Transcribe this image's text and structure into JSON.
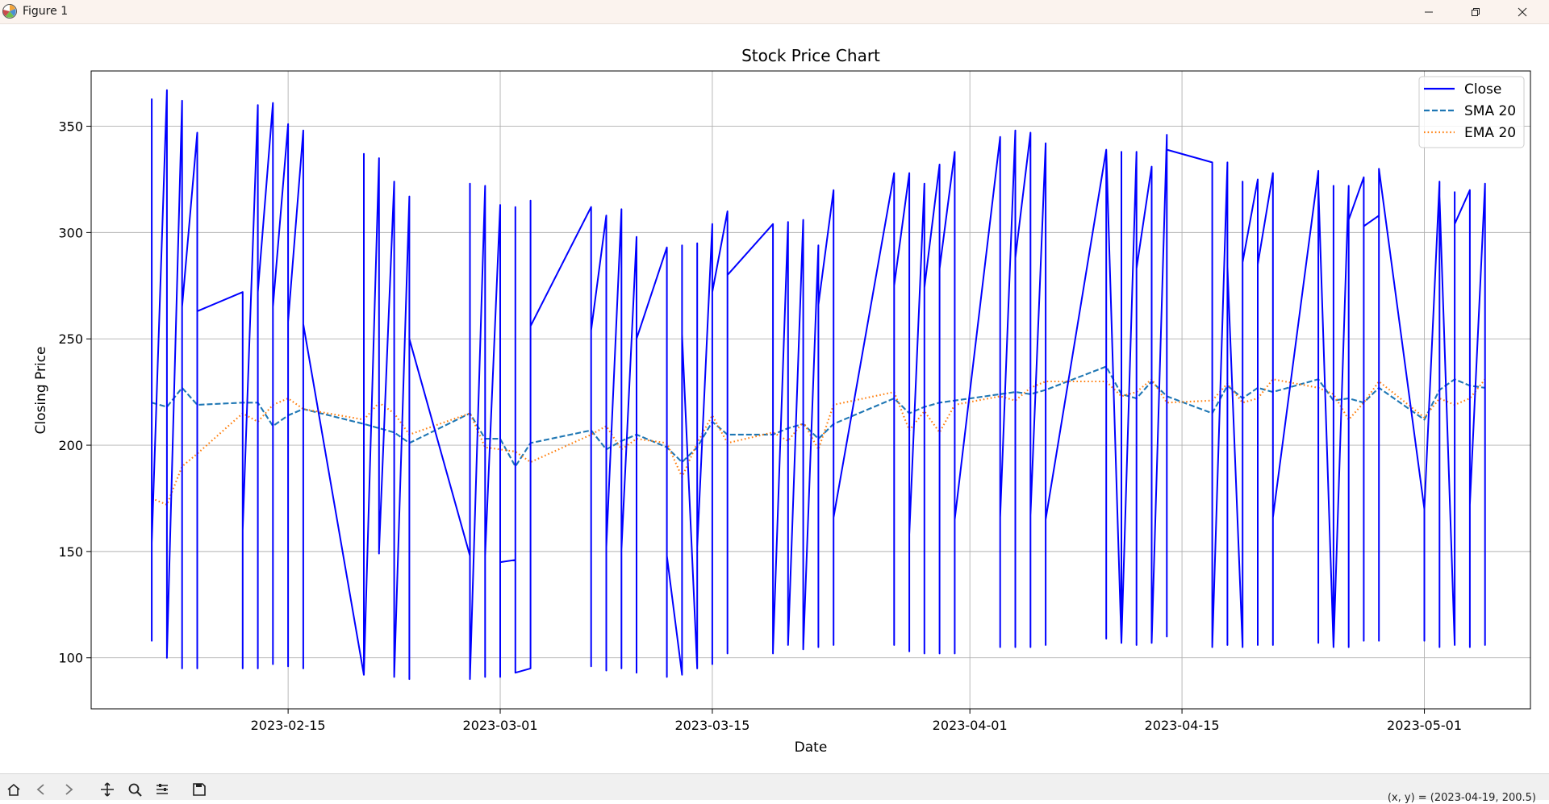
{
  "window": {
    "title": "Figure 1",
    "app_icon": "matplotlib-icon",
    "controls": [
      "minimize-icon",
      "maximize-icon",
      "close-icon"
    ]
  },
  "toolbar": {
    "tools": [
      "home-icon",
      "back-icon",
      "forward-icon",
      "pan-icon",
      "zoom-icon",
      "configure-subplots-icon",
      "save-icon"
    ],
    "coordinates": "(x, y) = (2023-04-19, 200.5)"
  },
  "chart_data": {
    "type": "line",
    "title": "Stock Price Chart",
    "xlabel": "Date",
    "ylabel": "Closing Price",
    "x_ticks": [
      "2023-02-15",
      "2023-03-01",
      "2023-03-15",
      "2023-04-01",
      "2023-04-15",
      "2023-05-01"
    ],
    "y_ticks": [
      100,
      150,
      200,
      250,
      300,
      350
    ],
    "xlim": [
      "2023-02-02",
      "2023-05-08"
    ],
    "ylim": [
      76,
      376
    ],
    "grid": true,
    "legend": "top-right",
    "x": [
      "2023-02-06",
      "2023-02-07",
      "2023-02-08",
      "2023-02-09",
      "2023-02-12",
      "2023-02-13",
      "2023-02-14",
      "2023-02-15",
      "2023-02-16",
      "2023-02-20",
      "2023-02-21",
      "2023-02-22",
      "2023-02-23",
      "2023-02-27",
      "2023-02-28",
      "2023-03-01",
      "2023-03-02",
      "2023-03-03",
      "2023-03-07",
      "2023-03-08",
      "2023-03-09",
      "2023-03-10",
      "2023-03-12",
      "2023-03-13",
      "2023-03-14",
      "2023-03-15",
      "2023-03-16",
      "2023-03-19",
      "2023-03-20",
      "2023-03-21",
      "2023-03-22",
      "2023-03-23",
      "2023-03-27",
      "2023-03-28",
      "2023-03-29",
      "2023-03-30",
      "2023-03-31",
      "2023-04-03",
      "2023-04-04",
      "2023-04-05",
      "2023-04-06",
      "2023-04-10",
      "2023-04-11",
      "2023-04-12",
      "2023-04-13",
      "2023-04-14",
      "2023-04-17",
      "2023-04-18",
      "2023-04-19",
      "2023-04-20",
      "2023-04-21",
      "2023-04-24",
      "2023-04-25",
      "2023-04-26",
      "2023-04-27",
      "2023-04-28",
      "2023-05-01",
      "2023-05-02",
      "2023-05-03",
      "2023-05-04",
      "2023-05-05"
    ],
    "series": [
      {
        "name": "Close",
        "color": "#0000ff",
        "style": "solid",
        "values": [
          [
            363,
            108,
            154
          ],
          [
            367,
            100,
            101
          ],
          [
            362,
            95,
            265
          ],
          [
            347,
            95,
            263
          ],
          [
            272,
            95,
            160
          ],
          [
            360,
            95,
            272
          ],
          [
            361,
            97,
            265
          ],
          [
            351,
            96,
            258
          ],
          [
            348,
            95,
            257
          ],
          [
            92,
            337,
            92
          ],
          [
            335,
            149,
            150
          ],
          [
            324,
            92,
            91
          ],
          [
            317,
            90,
            250
          ],
          [
            148,
            323,
            90
          ],
          [
            322,
            91,
            148
          ],
          [
            313,
            91,
            145
          ],
          [
            146,
            312,
            93
          ],
          [
            95,
            315,
            256
          ],
          [
            312,
            96,
            254
          ],
          [
            308,
            94,
            152
          ],
          [
            311,
            95,
            151
          ],
          [
            298,
            93,
            250
          ],
          [
            293,
            91,
            148
          ],
          [
            92,
            294,
            252
          ],
          [
            95,
            295,
            152
          ],
          [
            304,
            97,
            272
          ],
          [
            310,
            102,
            280
          ],
          [
            304,
            102,
            103
          ],
          [
            305,
            273,
            106
          ],
          [
            306,
            265,
            104
          ],
          [
            294,
            105,
            266
          ],
          [
            320,
            106,
            166
          ],
          [
            328,
            106,
            275
          ],
          [
            328,
            103,
            158
          ],
          [
            323,
            102,
            274
          ],
          [
            332,
            102,
            283
          ],
          [
            338,
            102,
            165
          ],
          [
            345,
            105,
            166
          ],
          [
            348,
            105,
            288
          ],
          [
            347,
            105,
            167
          ],
          [
            342,
            106,
            165
          ],
          [
            339,
            109,
            339
          ],
          [
            107,
            338,
            107
          ],
          [
            338,
            106,
            283
          ],
          [
            331,
            289,
            107
          ],
          [
            346,
            110,
            339
          ],
          [
            333,
            107,
            105
          ],
          [
            333,
            106,
            284
          ],
          [
            105,
            324,
            286
          ],
          [
            325,
            106,
            285
          ],
          [
            328,
            106,
            166
          ],
          [
            329,
            107,
            322
          ],
          [
            105,
            322,
            105
          ],
          [
            322,
            105,
            306
          ],
          [
            326,
            108,
            303
          ],
          [
            308,
            108,
            330
          ],
          [
            170,
            108,
            170
          ],
          [
            324,
            105,
            317
          ],
          [
            106,
            319,
            304
          ],
          [
            320,
            105,
            172
          ],
          [
            323,
            106,
            107
          ]
        ]
      },
      {
        "name": "SMA 20",
        "color": "#1f77b4",
        "style": "dashed",
        "values": [
          220,
          218,
          227,
          219,
          220,
          220,
          209,
          214,
          217,
          210,
          208,
          206,
          201,
          215,
          203,
          203,
          190,
          201,
          207,
          198,
          202,
          205,
          199,
          192,
          199,
          211,
          205,
          205,
          208,
          210,
          203,
          210,
          222,
          215,
          218,
          220,
          221,
          224,
          225,
          224,
          226,
          237,
          224,
          222,
          230,
          223,
          215,
          228,
          222,
          227,
          225,
          231,
          221,
          222,
          220,
          227,
          212,
          226,
          231,
          228,
          227
        ]
      },
      {
        "name": "EMA 20",
        "color": "#ff7f0e",
        "style": "dotted",
        "values": [
          175,
          172,
          190,
          196,
          215,
          211,
          219,
          222,
          217,
          212,
          220,
          215,
          205,
          215,
          199,
          198,
          197,
          192,
          205,
          209,
          198,
          203,
          201,
          185,
          201,
          214,
          201,
          206,
          202,
          211,
          198,
          219,
          225,
          207,
          216,
          206,
          219,
          223,
          221,
          227,
          230,
          230,
          223,
          225,
          231,
          220,
          221,
          229,
          220,
          222,
          231,
          227,
          224,
          212,
          220,
          230,
          213,
          222,
          219,
          222,
          231
        ]
      }
    ]
  }
}
